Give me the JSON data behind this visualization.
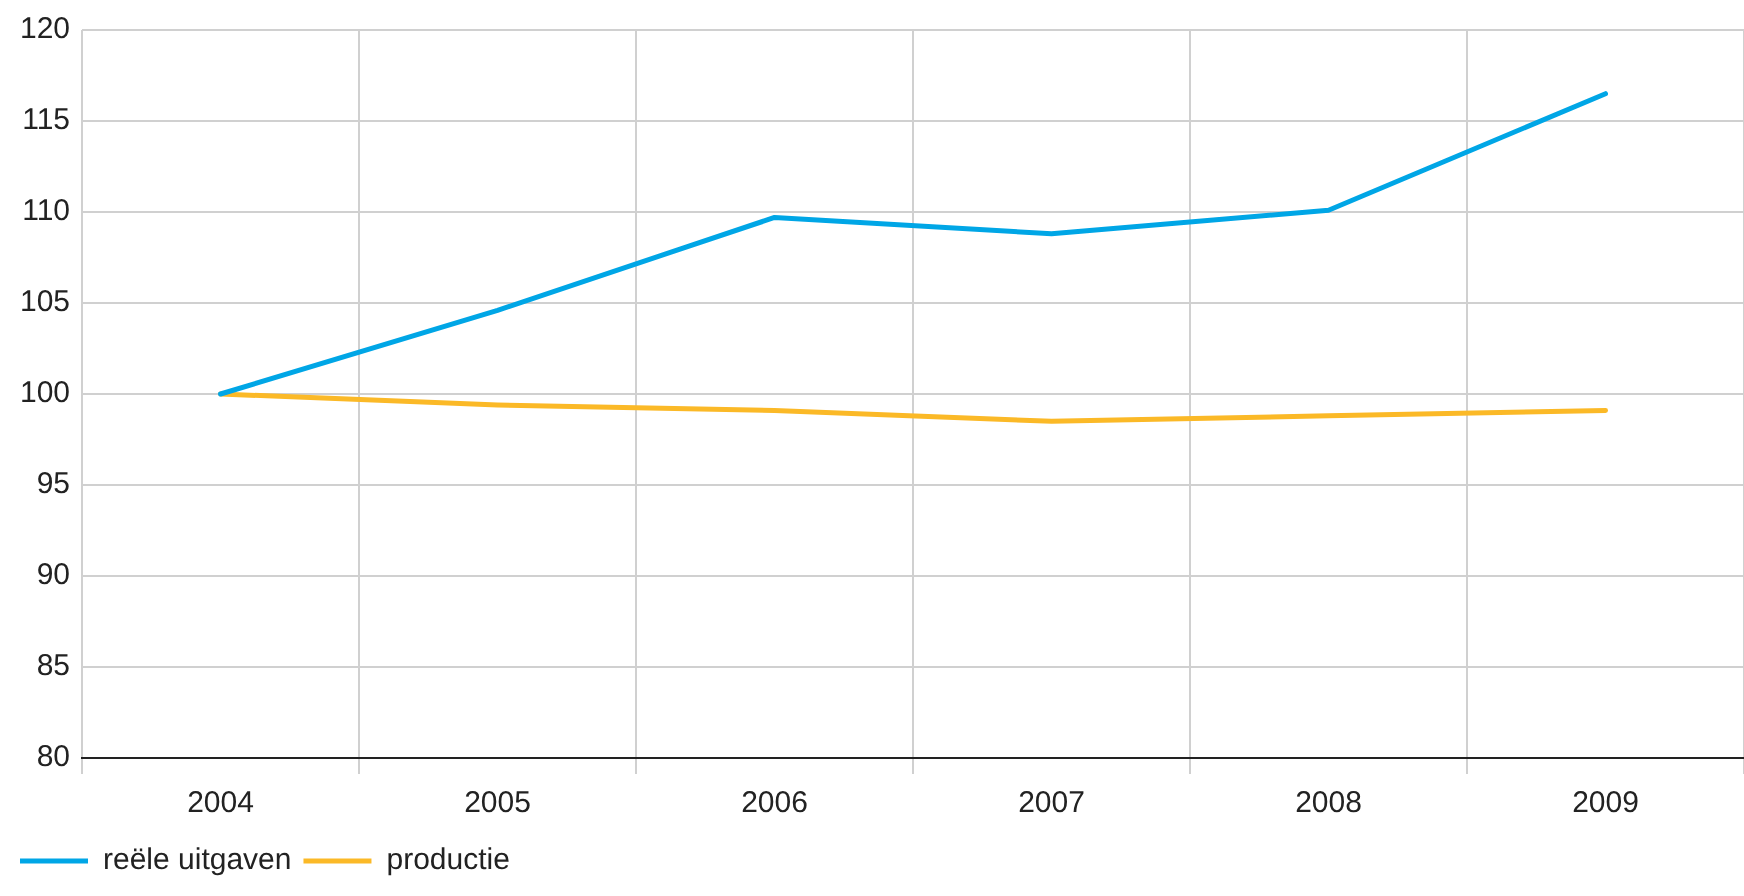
{
  "chart_data": {
    "type": "line",
    "categories": [
      "2004",
      "2005",
      "2006",
      "2007",
      "2008",
      "2009"
    ],
    "series": [
      {
        "name": "reële uitgaven",
        "color": "#00a6e6",
        "values": [
          100,
          104.6,
          109.7,
          108.8,
          110.1,
          116.5
        ]
      },
      {
        "name": "productie",
        "color": "#fbb927",
        "values": [
          100,
          99.4,
          99.1,
          98.5,
          98.8,
          99.1
        ]
      }
    ],
    "ylim": [
      80,
      120
    ],
    "yticks": [
      80,
      85,
      90,
      95,
      100,
      105,
      110,
      115,
      120
    ],
    "grid": true,
    "legend": "bottom left",
    "marker": "none",
    "line_style": "solid"
  }
}
